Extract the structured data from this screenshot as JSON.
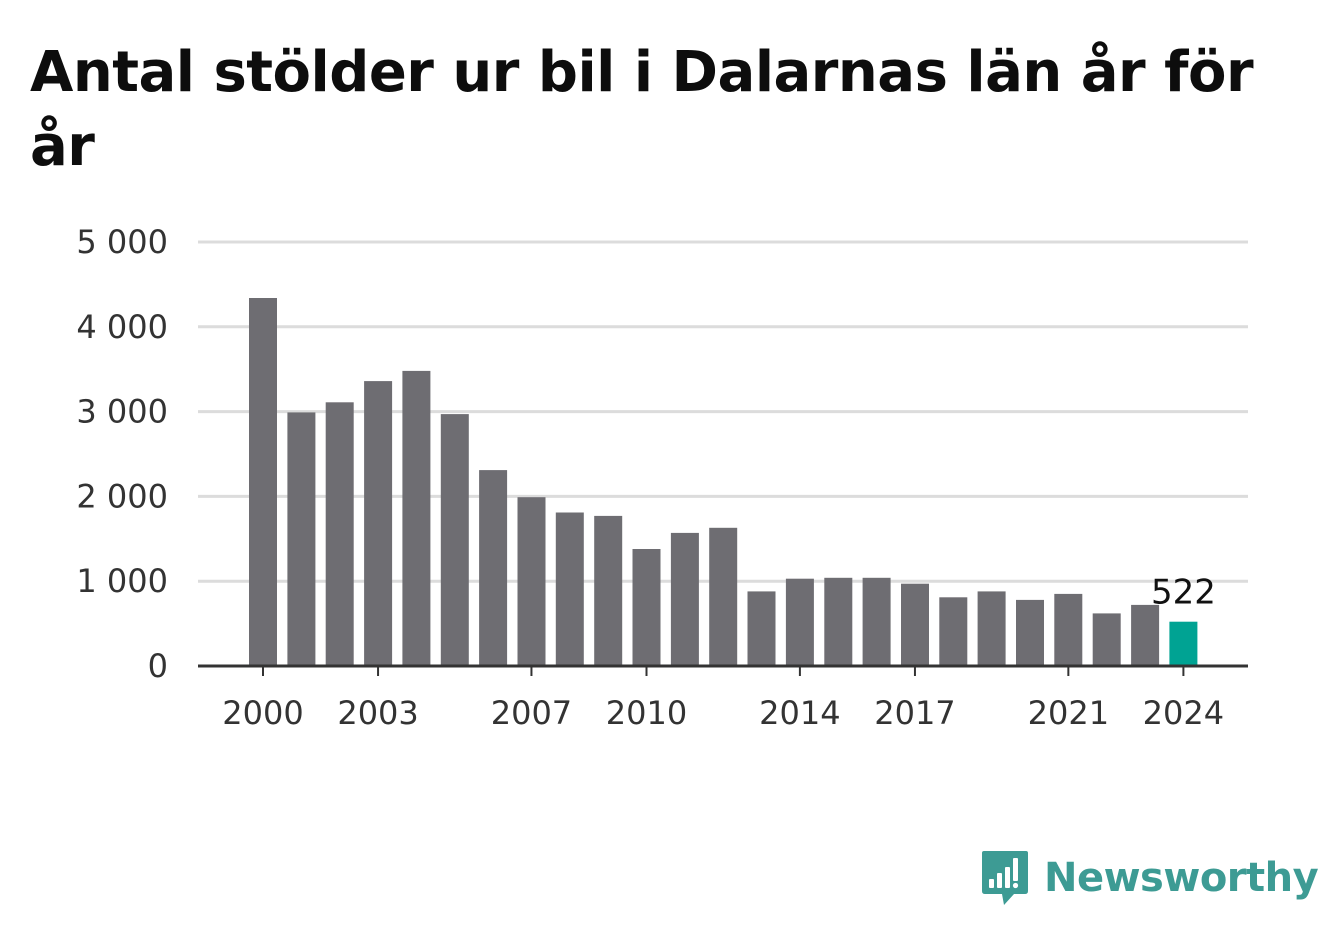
{
  "title": "Antal stölder ur bil i Dalarnas län år för år",
  "colors": {
    "bar": "#6e6d72",
    "highlight": "#00a393",
    "grid": "#dcdcdc",
    "axis": "#333333",
    "brand": "#3d9b94"
  },
  "brand": {
    "name": "Newsworthy",
    "icon": "newsworthy-logo-icon"
  },
  "chart_data": {
    "type": "bar",
    "title": "Antal stölder ur bil i Dalarnas län år för år",
    "xlabel": "",
    "ylabel": "",
    "ylim": [
      0,
      5000
    ],
    "yticks": [
      0,
      1000,
      2000,
      3000,
      4000,
      5000
    ],
    "ytick_labels": [
      "0",
      "1 000",
      "2 000",
      "3 000",
      "4 000",
      "5 000"
    ],
    "xtick_labels": [
      "2000",
      "2003",
      "2007",
      "2010",
      "2014",
      "2017",
      "2021",
      "2024"
    ],
    "grid": true,
    "legend": "none",
    "categories": [
      "2000",
      "2001",
      "2002",
      "2003",
      "2004",
      "2005",
      "2006",
      "2007",
      "2008",
      "2009",
      "2010",
      "2011",
      "2012",
      "2013",
      "2014",
      "2015",
      "2016",
      "2017",
      "2018",
      "2019",
      "2020",
      "2021",
      "2022",
      "2023",
      "2024"
    ],
    "values": [
      4340,
      2990,
      3110,
      3360,
      3480,
      2970,
      2310,
      1990,
      1810,
      1770,
      1380,
      1570,
      1630,
      880,
      1030,
      1040,
      1040,
      970,
      810,
      880,
      780,
      850,
      620,
      720,
      522
    ],
    "highlight_index": 24,
    "data_labels": [
      {
        "index": 24,
        "text": "522"
      }
    ]
  }
}
